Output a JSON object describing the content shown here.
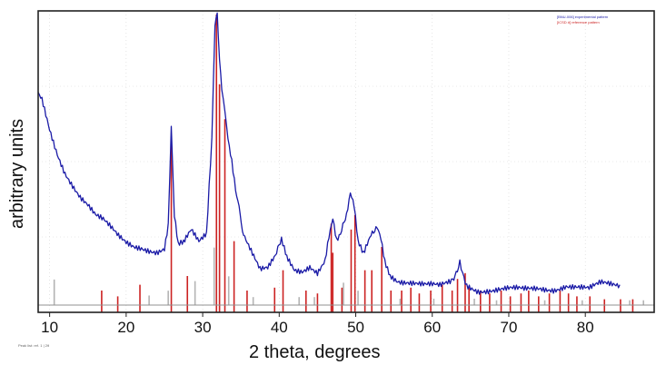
{
  "chart_data": {
    "type": "line",
    "xlabel": "2 theta, degrees",
    "ylabel": "arbitrary units",
    "xlim": [
      8.5,
      89
    ],
    "ylim": [
      0,
      100
    ],
    "xticks": [
      10,
      20,
      30,
      40,
      50,
      60,
      70,
      80
    ],
    "grid": true,
    "legend_position": "top-right",
    "legend": [
      {
        "text": "[BNU-006] experimental pattern",
        "color": "#1a1aa6"
      },
      {
        "text": "[ICSD #] reference pattern",
        "color": "#cc2222"
      }
    ],
    "footnote": "Peak list: ref. 1 | 2θ",
    "colors": {
      "experimental": "#1a1aa6",
      "reference_red": "#cc2222",
      "reference_gray": "#b4b4b4",
      "baseline": "#909090",
      "grid": "#d4d4d4"
    },
    "series": [
      {
        "name": "experimental pattern",
        "x": [
          8.5,
          9,
          10,
          11,
          12,
          13,
          14,
          15,
          16,
          17,
          18,
          19,
          20,
          21,
          22,
          23,
          24,
          25,
          25.5,
          25.9,
          26.3,
          26.8,
          27.5,
          28.5,
          29.5,
          30.5,
          31.2,
          31.6,
          31.9,
          32.2,
          32.5,
          32.9,
          33.3,
          33.8,
          34.3,
          34.9,
          35.5,
          36.5,
          37.5,
          38.5,
          39.5,
          40.3,
          41,
          42,
          43,
          44,
          45,
          46,
          46.5,
          47,
          47.5,
          48,
          48.8,
          49.3,
          49.8,
          50.3,
          51,
          52,
          52.8,
          53.3,
          53.8,
          54.5,
          55.5,
          57,
          59,
          61,
          62.5,
          63.6,
          64.5,
          66,
          68,
          70,
          72,
          74,
          76,
          77.5,
          79,
          80.5,
          82,
          83.5,
          84.5
        ],
        "y": [
          72,
          70,
          60,
          52,
          46,
          42,
          38,
          35,
          31,
          29,
          26,
          23,
          21,
          20,
          20,
          19.5,
          19,
          20,
          28,
          62,
          30,
          20,
          21,
          25,
          21,
          24,
          56,
          96,
          100,
          84,
          74,
          65,
          58,
          50,
          40,
          30,
          24,
          18,
          12,
          12,
          16,
          23,
          16,
          12,
          12,
          14,
          12,
          16,
          24,
          30,
          22,
          24,
          30,
          38,
          34,
          22,
          17,
          24,
          28,
          24,
          16,
          11,
          9,
          8,
          6.5,
          6,
          8,
          15,
          7.5,
          5.5,
          5,
          5,
          5,
          6,
          6,
          7,
          6,
          5,
          7,
          7,
          7
        ]
      }
    ],
    "reference_sticks": {
      "red": [
        {
          "x": 16.8,
          "h": 5
        },
        {
          "x": 18.9,
          "h": 3
        },
        {
          "x": 21.8,
          "h": 7
        },
        {
          "x": 25.9,
          "h": 58
        },
        {
          "x": 28.0,
          "h": 10
        },
        {
          "x": 31.8,
          "h": 100
        },
        {
          "x": 32.2,
          "h": 76
        },
        {
          "x": 32.9,
          "h": 64
        },
        {
          "x": 34.1,
          "h": 22
        },
        {
          "x": 35.8,
          "h": 5
        },
        {
          "x": 39.4,
          "h": 6
        },
        {
          "x": 40.5,
          "h": 12
        },
        {
          "x": 43.5,
          "h": 5
        },
        {
          "x": 45.0,
          "h": 4
        },
        {
          "x": 46.8,
          "h": 28
        },
        {
          "x": 47.0,
          "h": 18
        },
        {
          "x": 48.2,
          "h": 6
        },
        {
          "x": 49.4,
          "h": 26
        },
        {
          "x": 49.9,
          "h": 31
        },
        {
          "x": 51.2,
          "h": 12
        },
        {
          "x": 52.1,
          "h": 12
        },
        {
          "x": 53.4,
          "h": 20
        },
        {
          "x": 54.6,
          "h": 5
        },
        {
          "x": 56.0,
          "h": 5
        },
        {
          "x": 57.2,
          "h": 6
        },
        {
          "x": 58.3,
          "h": 4
        },
        {
          "x": 59.8,
          "h": 5
        },
        {
          "x": 61.3,
          "h": 7
        },
        {
          "x": 62.6,
          "h": 5
        },
        {
          "x": 63.3,
          "h": 9
        },
        {
          "x": 64.3,
          "h": 11
        },
        {
          "x": 64.8,
          "h": 6
        },
        {
          "x": 66.3,
          "h": 5
        },
        {
          "x": 67.5,
          "h": 4
        },
        {
          "x": 69.0,
          "h": 5
        },
        {
          "x": 70.2,
          "h": 3
        },
        {
          "x": 71.6,
          "h": 4
        },
        {
          "x": 72.6,
          "h": 5
        },
        {
          "x": 73.9,
          "h": 3
        },
        {
          "x": 75.3,
          "h": 4
        },
        {
          "x": 76.7,
          "h": 5
        },
        {
          "x": 77.8,
          "h": 4
        },
        {
          "x": 78.9,
          "h": 3
        },
        {
          "x": 80.6,
          "h": 3
        },
        {
          "x": 82.5,
          "h": 2
        },
        {
          "x": 84.6,
          "h": 2
        },
        {
          "x": 86.2,
          "h": 2
        }
      ],
      "gray": [
        {
          "x": 10.6,
          "h": 16
        },
        {
          "x": 23.0,
          "h": 6
        },
        {
          "x": 25.5,
          "h": 9
        },
        {
          "x": 29.0,
          "h": 15
        },
        {
          "x": 31.5,
          "h": 36
        },
        {
          "x": 33.4,
          "h": 18
        },
        {
          "x": 36.6,
          "h": 5
        },
        {
          "x": 42.6,
          "h": 5
        },
        {
          "x": 44.6,
          "h": 5
        },
        {
          "x": 48.4,
          "h": 14
        },
        {
          "x": 50.3,
          "h": 9
        },
        {
          "x": 55.8,
          "h": 4
        },
        {
          "x": 60.2,
          "h": 4
        },
        {
          "x": 65.5,
          "h": 4
        },
        {
          "x": 68.4,
          "h": 3
        },
        {
          "x": 74.7,
          "h": 3
        },
        {
          "x": 79.6,
          "h": 3
        },
        {
          "x": 85.8,
          "h": 3
        },
        {
          "x": 87.6,
          "h": 3
        }
      ]
    }
  }
}
